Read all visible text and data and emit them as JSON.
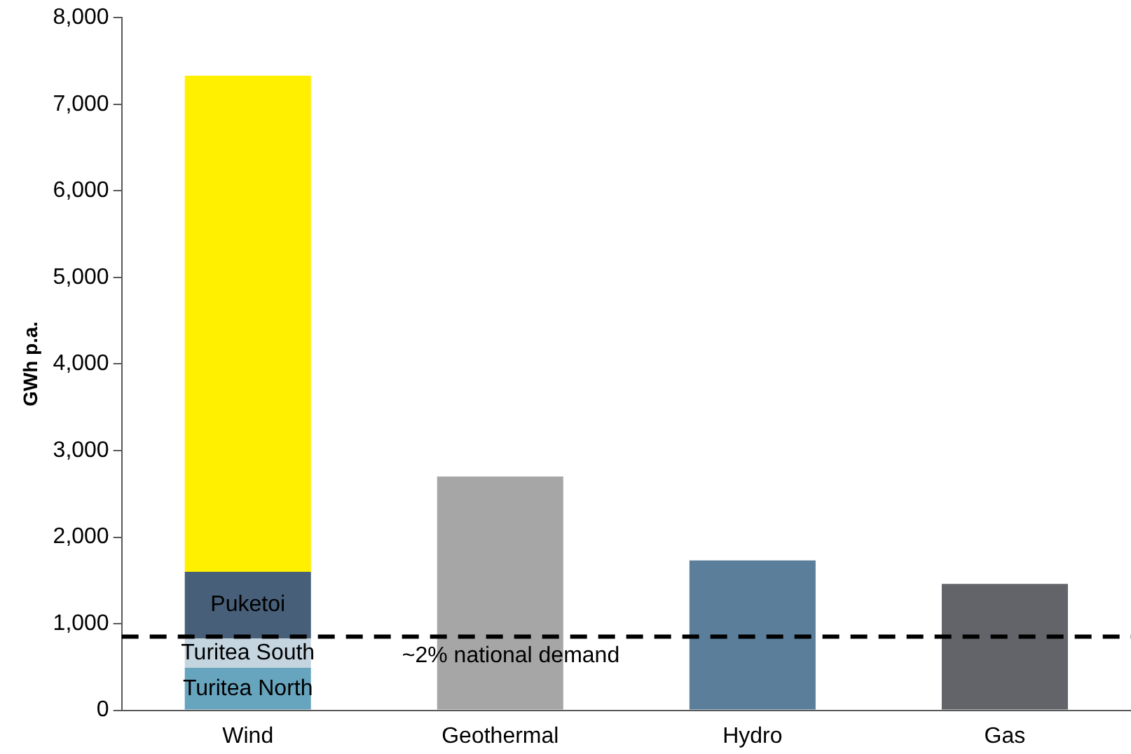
{
  "chart_data": {
    "type": "bar",
    "ylabel": "GWh p.a.",
    "categories": [
      "Wind",
      "Geothermal",
      "Hydro",
      "Gas"
    ],
    "stacked": true,
    "series": [
      {
        "name": "Turitea North",
        "color": "#67a4bd",
        "values": [
          490,
          null,
          null,
          null
        ]
      },
      {
        "name": "Turitea South",
        "color": "#c5d5e0",
        "values": [
          340,
          null,
          null,
          null
        ]
      },
      {
        "name": "Puketoi",
        "color": "#475f78",
        "values": [
          770,
          null,
          null,
          null
        ]
      },
      {
        "colors": [
          "#fff000",
          "#a6a6a6",
          "#5b7f9b",
          "#636469"
        ],
        "values": [
          5730,
          2700,
          1730,
          1460
        ]
      }
    ],
    "ylim": [
      0,
      8000
    ],
    "yticks": [
      {
        "value": 0,
        "label": "0"
      },
      {
        "value": 1000,
        "label": "1,000"
      },
      {
        "value": 2000,
        "label": "2,000"
      },
      {
        "value": 3000,
        "label": "3,000"
      },
      {
        "value": 4000,
        "label": "4,000"
      },
      {
        "value": 5000,
        "label": "5,000"
      },
      {
        "value": 6000,
        "label": "6,000"
      },
      {
        "value": 7000,
        "label": "7,000"
      },
      {
        "value": 8000,
        "label": "8,000"
      }
    ],
    "ref_lines": [
      {
        "axis": "y",
        "value": 850,
        "label": "~2% national demand",
        "color": "#000000",
        "line_style": "dashed"
      }
    ],
    "grid": false,
    "legend": false
  }
}
